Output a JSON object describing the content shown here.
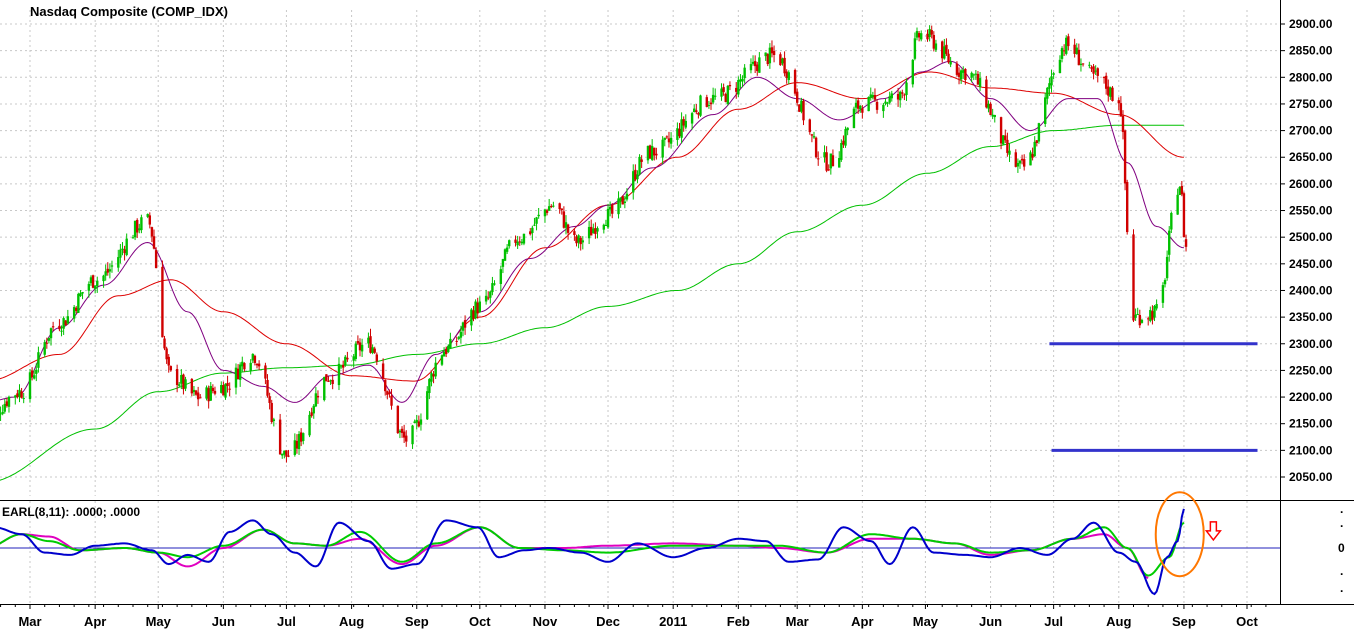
{
  "chart_data": [
    {
      "type": "candlestick",
      "title": "Nasdaq Composite (COMP_IDX)",
      "ylim": [
        2020,
        2930
      ],
      "y_ticks": [
        2050,
        2100,
        2150,
        2200,
        2250,
        2300,
        2350,
        2400,
        2450,
        2500,
        2550,
        2600,
        2650,
        2700,
        2750,
        2800,
        2850,
        2900
      ],
      "y_tick_labels": [
        "2050.00",
        "2100.00",
        "2150.00",
        "2200.00",
        "2250.00",
        "2300.00",
        "2350.00",
        "2400.00",
        "2450.00",
        "2500.00",
        "2550.00",
        "2600.00",
        "2650.00",
        "2700.00",
        "2750.00",
        "2800.00",
        "2850.00",
        "2900.00"
      ],
      "x_labels": [
        "Mar",
        "Apr",
        "May",
        "Jun",
        "Jul",
        "Aug",
        "Sep",
        "Oct",
        "Nov",
        "Dec",
        "2011",
        "Feb",
        "Mar",
        "Apr",
        "May",
        "Jun",
        "Jul",
        "Aug",
        "Sep",
        "Oct"
      ],
      "x_label_dates": [
        "2010-03-01",
        "2010-04-01",
        "2010-05-01",
        "2010-06-01",
        "2010-07-01",
        "2010-08-01",
        "2010-09-01",
        "2010-10-01",
        "2010-11-01",
        "2010-12-01",
        "2011-01-01",
        "2011-02-01",
        "2011-03-01",
        "2011-04-01",
        "2011-05-01",
        "2011-06-01",
        "2011-07-01",
        "2011-08-01",
        "2011-09-01",
        "2011-10-01"
      ],
      "up_color": "#00c000",
      "down_color": "#d00000",
      "price_path": {
        "dates": [
          "2010-02-08",
          "2010-02-24",
          "2010-03-15",
          "2010-04-01",
          "2010-04-26",
          "2010-05-07",
          "2010-05-20",
          "2010-06-01",
          "2010-06-15",
          "2010-07-01",
          "2010-07-22",
          "2010-08-09",
          "2010-08-27",
          "2010-09-15",
          "2010-10-01",
          "2010-10-20",
          "2010-11-05",
          "2010-11-16",
          "2010-12-01",
          "2010-12-22",
          "2011-01-20",
          "2011-02-18",
          "2011-03-16",
          "2011-04-01",
          "2011-04-18",
          "2011-04-29",
          "2011-05-20",
          "2011-06-16",
          "2011-07-07",
          "2011-07-21",
          "2011-08-01",
          "2011-08-08",
          "2011-08-19",
          "2011-08-30",
          "2011-09-02"
        ],
        "closes": [
          2160,
          2210,
          2340,
          2420,
          2530,
          2240,
          2200,
          2220,
          2280,
          2090,
          2240,
          2300,
          2120,
          2290,
          2370,
          2500,
          2560,
          2490,
          2540,
          2660,
          2760,
          2840,
          2640,
          2750,
          2760,
          2880,
          2810,
          2630,
          2860,
          2800,
          2760,
          2350,
          2360,
          2600,
          2480
        ]
      },
      "moving_averages": [
        {
          "period": "short",
          "color": "#800080",
          "dates": [
            "2010-02-08",
            "2010-02-22",
            "2010-03-15",
            "2010-04-05",
            "2010-04-26",
            "2010-05-15",
            "2010-06-01",
            "2010-06-20",
            "2010-07-05",
            "2010-07-22",
            "2010-08-09",
            "2010-08-25",
            "2010-09-10",
            "2010-10-01",
            "2010-10-25",
            "2010-11-15",
            "2010-12-01",
            "2010-12-22",
            "2011-01-20",
            "2011-02-10",
            "2011-03-01",
            "2011-03-21",
            "2011-04-11",
            "2011-04-29",
            "2011-05-13",
            "2011-06-01",
            "2011-06-20",
            "2011-07-08",
            "2011-07-22",
            "2011-08-05",
            "2011-08-19",
            "2011-09-01"
          ],
          "values": [
            2190,
            2200,
            2330,
            2410,
            2490,
            2360,
            2250,
            2220,
            2190,
            2240,
            2260,
            2190,
            2280,
            2360,
            2460,
            2520,
            2560,
            2630,
            2730,
            2800,
            2760,
            2720,
            2760,
            2810,
            2830,
            2760,
            2700,
            2760,
            2760,
            2640,
            2520,
            2480
          ]
        },
        {
          "period": "mid",
          "color": "#dd0000",
          "dates": [
            "2010-02-08",
            "2010-03-15",
            "2010-04-12",
            "2010-05-07",
            "2010-06-01",
            "2010-07-01",
            "2010-08-01",
            "2010-08-31",
            "2010-10-01",
            "2010-11-01",
            "2010-12-01",
            "2011-01-03",
            "2011-02-01",
            "2011-03-01",
            "2011-04-01",
            "2011-05-03",
            "2011-06-01",
            "2011-07-01",
            "2011-08-01",
            "2011-09-01"
          ],
          "values": [
            2230,
            2280,
            2390,
            2420,
            2360,
            2300,
            2240,
            2230,
            2350,
            2480,
            2560,
            2650,
            2740,
            2790,
            2760,
            2810,
            2780,
            2770,
            2730,
            2650
          ]
        },
        {
          "period": "long",
          "color": "#00c000",
          "dates": [
            "2010-02-08",
            "2010-04-01",
            "2010-05-01",
            "2010-06-01",
            "2010-07-01",
            "2010-08-01",
            "2010-09-01",
            "2010-10-01",
            "2010-11-01",
            "2010-12-01",
            "2011-01-03",
            "2011-02-01",
            "2011-03-01",
            "2011-04-01",
            "2011-05-02",
            "2011-06-01",
            "2011-07-01",
            "2011-08-01",
            "2011-09-01"
          ],
          "values": [
            2040,
            2140,
            2210,
            2245,
            2255,
            2260,
            2280,
            2300,
            2330,
            2370,
            2400,
            2450,
            2510,
            2560,
            2620,
            2670,
            2700,
            2710,
            2710
          ]
        }
      ],
      "annotations": [
        {
          "type": "hline",
          "y": 2300,
          "x_start": "2011-06-29",
          "x_end": "2011-10-06",
          "color": "#3333cc"
        },
        {
          "type": "hline",
          "y": 2100,
          "x_start": "2011-06-30",
          "x_end": "2011-10-06",
          "color": "#3333cc"
        }
      ]
    },
    {
      "type": "line",
      "title": "EARL(8,11): .0000; .0000",
      "ylim": [
        -1,
        1
      ],
      "y_tick_labels": [
        "0"
      ],
      "zero_line_color": "#2222bb",
      "series": [
        {
          "color": "#0000cc",
          "dates": [
            "2010-02-08",
            "2010-02-12",
            "2010-02-25",
            "2010-03-08",
            "2010-03-20",
            "2010-04-01",
            "2010-04-15",
            "2010-04-28",
            "2010-05-06",
            "2010-05-15",
            "2010-05-25",
            "2010-06-04",
            "2010-06-15",
            "2010-06-24",
            "2010-07-05",
            "2010-07-15",
            "2010-07-26",
            "2010-08-09",
            "2010-08-20",
            "2010-09-01",
            "2010-09-15",
            "2010-09-30",
            "2010-10-10",
            "2010-10-22",
            "2010-11-03",
            "2010-11-18",
            "2010-12-01",
            "2010-12-15",
            "2011-01-01",
            "2011-01-17",
            "2011-02-01",
            "2011-02-14",
            "2011-02-25",
            "2011-03-11",
            "2011-03-23",
            "2011-04-05",
            "2011-04-14",
            "2011-04-25",
            "2011-05-05",
            "2011-05-20",
            "2011-06-01",
            "2011-06-15",
            "2011-06-28",
            "2011-07-10",
            "2011-07-20",
            "2011-08-01",
            "2011-08-09",
            "2011-08-18",
            "2011-08-24",
            "2011-08-29",
            "2011-09-01"
          ],
          "values": [
            0.2,
            0.45,
            0.3,
            -0.1,
            -0.15,
            0.05,
            0.1,
            -0.05,
            -0.35,
            -0.15,
            -0.3,
            0.35,
            0.6,
            0.3,
            -0.1,
            -0.4,
            0.55,
            0.15,
            -0.45,
            -0.35,
            0.6,
            0.45,
            -0.2,
            -0.05,
            0.0,
            -0.1,
            -0.3,
            0.1,
            -0.2,
            0.0,
            0.2,
            0.15,
            -0.3,
            -0.25,
            0.45,
            0.15,
            -0.35,
            0.45,
            -0.1,
            -0.15,
            -0.2,
            0.0,
            -0.15,
            0.2,
            0.55,
            -0.1,
            -0.3,
            -1.0,
            -0.2,
            0.15,
            0.85
          ]
        },
        {
          "color": "#00cc00",
          "dates": [
            "2010-02-08",
            "2010-02-25",
            "2010-03-10",
            "2010-03-25",
            "2010-04-15",
            "2010-05-01",
            "2010-05-15",
            "2010-06-01",
            "2010-06-20",
            "2010-07-05",
            "2010-07-20",
            "2010-08-05",
            "2010-08-25",
            "2010-09-10",
            "2010-10-01",
            "2010-10-20",
            "2010-11-10",
            "2010-12-01",
            "2011-01-01",
            "2011-02-01",
            "2011-02-20",
            "2011-03-15",
            "2011-04-05",
            "2011-04-25",
            "2011-05-15",
            "2011-06-01",
            "2011-06-20",
            "2011-07-10",
            "2011-07-25",
            "2011-08-05",
            "2011-08-15",
            "2011-08-25",
            "2011-09-01"
          ],
          "values": [
            0.0,
            0.3,
            0.15,
            -0.05,
            0.0,
            -0.1,
            -0.2,
            0.05,
            0.4,
            0.1,
            0.05,
            0.35,
            -0.3,
            0.1,
            0.45,
            0.0,
            -0.05,
            -0.1,
            0.05,
            0.05,
            0.05,
            -0.1,
            0.3,
            0.2,
            0.1,
            -0.1,
            -0.05,
            0.2,
            0.45,
            0.0,
            -0.6,
            -0.2,
            0.55
          ]
        },
        {
          "color": "#e000c0",
          "dates": [
            "2010-02-08",
            "2010-02-25",
            "2010-03-10",
            "2010-03-25",
            "2010-04-15",
            "2010-05-01",
            "2010-05-15",
            "2010-06-01",
            "2010-06-20",
            "2010-07-05",
            "2010-07-20",
            "2010-08-05",
            "2010-08-25",
            "2010-09-10",
            "2010-10-01",
            "2010-10-20",
            "2010-11-10",
            "2010-12-01",
            "2011-01-01",
            "2011-02-01",
            "2011-02-20",
            "2011-03-15",
            "2011-04-05",
            "2011-04-25",
            "2011-05-15",
            "2011-06-01",
            "2011-06-20",
            "2011-07-10",
            "2011-07-25",
            "2011-08-05",
            "2011-08-15"
          ],
          "values": [
            0.0,
            0.3,
            0.25,
            -0.05,
            0.0,
            -0.1,
            -0.4,
            0.0,
            0.4,
            0.1,
            0.05,
            0.2,
            -0.35,
            0.05,
            0.45,
            0.0,
            0.0,
            0.05,
            0.1,
            0.05,
            0.0,
            -0.1,
            0.2,
            0.2,
            0.1,
            -0.15,
            -0.05,
            0.2,
            0.3,
            0.0,
            -0.65
          ]
        }
      ],
      "annotations": [
        {
          "type": "ellipse",
          "color": "#ff7700",
          "center_date": "2011-08-30",
          "center_y": 0.3
        },
        {
          "type": "arrow",
          "direction": "down",
          "color": "#ff0000",
          "date": "2011-09-15",
          "y": 0.35
        }
      ]
    }
  ]
}
